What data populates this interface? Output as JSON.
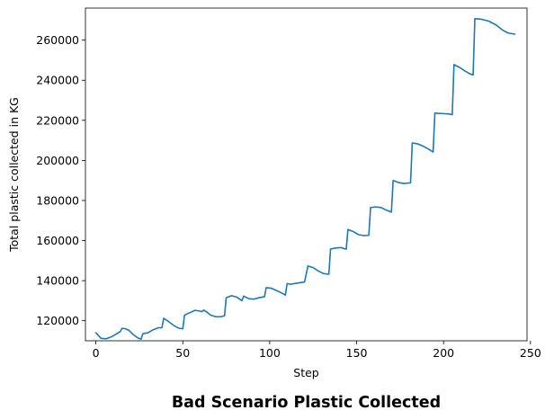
{
  "chart_data": {
    "type": "line",
    "title": "Bad Scenario Plastic Collected",
    "xlabel": "Step",
    "ylabel": "Total plastic collected in KG",
    "xlim": [
      -6,
      248
    ],
    "ylim": [
      110000,
      276000
    ],
    "grid": false,
    "xticks": [
      0,
      50,
      100,
      150,
      200,
      250
    ],
    "yticks": [
      120000,
      140000,
      160000,
      180000,
      200000,
      220000,
      240000,
      260000
    ],
    "x_tick_labels": [
      "0",
      "50",
      "100",
      "150",
      "200",
      "250"
    ],
    "y_tick_labels": [
      "120000",
      "140000",
      "160000",
      "180000",
      "200000",
      "220000",
      "240000",
      "260000"
    ],
    "series": [
      {
        "name": "plastic collected",
        "color": "#1f77b4",
        "points": [
          [
            0,
            114000
          ],
          [
            3,
            111200
          ],
          [
            6,
            111000
          ],
          [
            9,
            112000
          ],
          [
            12,
            113500
          ],
          [
            14,
            114500
          ],
          [
            15,
            116200
          ],
          [
            17,
            116000
          ],
          [
            19,
            115200
          ],
          [
            21,
            113500
          ],
          [
            24,
            111500
          ],
          [
            26,
            110800
          ],
          [
            27,
            113500
          ],
          [
            30,
            114000
          ],
          [
            33,
            115500
          ],
          [
            36,
            116500
          ],
          [
            38,
            116500
          ],
          [
            39,
            121200
          ],
          [
            42,
            119500
          ],
          [
            45,
            117500
          ],
          [
            48,
            116200
          ],
          [
            50,
            116000
          ],
          [
            51,
            122800
          ],
          [
            54,
            124000
          ],
          [
            57,
            125200
          ],
          [
            60,
            124800
          ],
          [
            61,
            124500
          ],
          [
            62,
            125300
          ],
          [
            64,
            124200
          ],
          [
            66,
            122800
          ],
          [
            69,
            122000
          ],
          [
            72,
            122000
          ],
          [
            74,
            122500
          ],
          [
            75,
            131500
          ],
          [
            78,
            132500
          ],
          [
            81,
            131800
          ],
          [
            84,
            130000
          ],
          [
            85,
            132300
          ],
          [
            88,
            131000
          ],
          [
            91,
            130800
          ],
          [
            94,
            131500
          ],
          [
            97,
            132000
          ],
          [
            98,
            136500
          ],
          [
            101,
            136200
          ],
          [
            104,
            135000
          ],
          [
            107,
            133800
          ],
          [
            109,
            132800
          ],
          [
            110,
            138500
          ],
          [
            112,
            138200
          ],
          [
            116,
            138800
          ],
          [
            120,
            139300
          ],
          [
            122,
            147300
          ],
          [
            125,
            146500
          ],
          [
            128,
            144800
          ],
          [
            131,
            143500
          ],
          [
            134,
            143200
          ],
          [
            135,
            155800
          ],
          [
            138,
            156300
          ],
          [
            141,
            156500
          ],
          [
            144,
            155700
          ],
          [
            145,
            165500
          ],
          [
            148,
            164500
          ],
          [
            151,
            163000
          ],
          [
            154,
            162500
          ],
          [
            157,
            162600
          ],
          [
            158,
            176500
          ],
          [
            161,
            176800
          ],
          [
            164,
            176500
          ],
          [
            167,
            175200
          ],
          [
            170,
            174200
          ],
          [
            171,
            190000
          ],
          [
            174,
            189000
          ],
          [
            177,
            188500
          ],
          [
            181,
            188800
          ],
          [
            182,
            208700
          ],
          [
            185,
            208300
          ],
          [
            188,
            207200
          ],
          [
            191,
            205800
          ],
          [
            194,
            204200
          ],
          [
            195,
            223600
          ],
          [
            199,
            223400
          ],
          [
            203,
            223200
          ],
          [
            205,
            222800
          ],
          [
            206,
            247800
          ],
          [
            209,
            246500
          ],
          [
            212,
            244800
          ],
          [
            215,
            243300
          ],
          [
            217,
            242600
          ],
          [
            218,
            270700
          ],
          [
            222,
            270400
          ],
          [
            226,
            269500
          ],
          [
            230,
            267700
          ],
          [
            234,
            265000
          ],
          [
            237,
            263600
          ],
          [
            241,
            263000
          ]
        ]
      }
    ]
  }
}
